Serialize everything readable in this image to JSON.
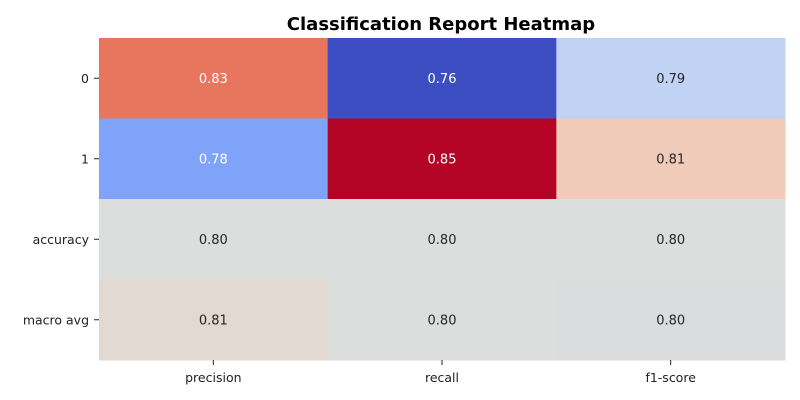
{
  "chart_data": {
    "type": "heatmap",
    "title": "Classification Report Heatmap",
    "xlabel": "",
    "ylabel": "",
    "columns": [
      "precision",
      "recall",
      "f1-score"
    ],
    "rows": [
      "0",
      "1",
      "accuracy",
      "macro avg"
    ],
    "values": [
      [
        0.83,
        0.76,
        0.79
      ],
      [
        0.78,
        0.85,
        0.81
      ],
      [
        0.8,
        0.8,
        0.8
      ],
      [
        0.81,
        0.8,
        0.8
      ]
    ],
    "value_labels": [
      [
        "0.83",
        "0.76",
        "0.79"
      ],
      [
        "0.78",
        "0.85",
        "0.81"
      ],
      [
        "0.80",
        "0.80",
        "0.80"
      ],
      [
        "0.81",
        "0.80",
        "0.80"
      ]
    ],
    "cell_colors": [
      [
        "#e8765e",
        "#3c4ec2",
        "#c0d3f5"
      ],
      [
        "#80a3fa",
        "#b40426",
        "#f0cbb9"
      ],
      [
        "#dcdddd",
        "#dcdddd",
        "#dcdddd"
      ],
      [
        "#e3d9d3",
        "#dcdddd",
        "#dbdcde"
      ]
    ],
    "label_colors": [
      [
        "#ffffff",
        "#ffffff",
        "#262626"
      ],
      [
        "#ffffff",
        "#ffffff",
        "#262626"
      ],
      [
        "#262626",
        "#262626",
        "#262626"
      ],
      [
        "#262626",
        "#262626",
        "#262626"
      ]
    ],
    "colormap": "coolwarm",
    "colorbar": false,
    "grid": false
  }
}
